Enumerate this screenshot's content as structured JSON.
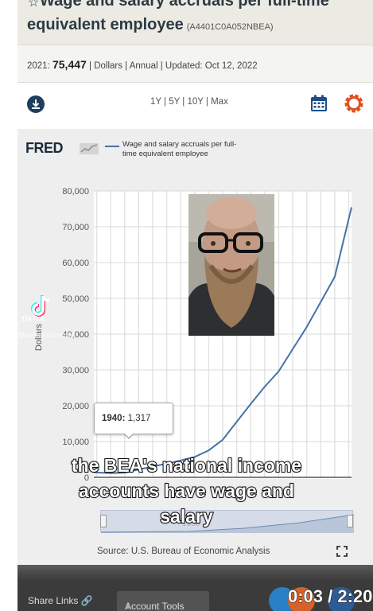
{
  "header": {
    "title_line1": "Wage and salary accruals per full-time",
    "title_line2": "equivalent employee",
    "series_id": "(A4401C0A052NBEA)"
  },
  "meta": {
    "year_label": "2021:",
    "value": "75,447",
    "details": "| Dollars | Annual | Updated: Oct 12, 2022"
  },
  "toolbar": {
    "range_links": "1Y | 5Y | 10Y | Max"
  },
  "chart": {
    "logo": "FRED",
    "legend": "Wage and salary accruals per full-time equivalent employee",
    "ylabel": "Dollars",
    "tooltip_year": "1940:",
    "tooltip_value": "1,317",
    "source": "Source: U.S. Bureau of Economic Analysis",
    "navigator_label": "1950"
  },
  "chart_data": {
    "type": "line",
    "ylabel": "Dollars",
    "ylim": [
      0,
      80000
    ],
    "yticks": [
      "0",
      "10,000",
      "20,000",
      "30,000",
      "40,000",
      "50,000",
      "60,000",
      "70,000",
      "80,000"
    ],
    "series": [
      {
        "name": "Wage and salary accruals per full-time equivalent employee",
        "x": [
          1929,
          1935,
          1940,
          1945,
          1950,
          1955,
          1960,
          1965,
          1970,
          1975,
          1980,
          1985,
          1990,
          1995,
          2000,
          2005,
          2010,
          2015,
          2021
        ],
        "values": [
          1405,
          1150,
          1317,
          2190,
          2990,
          3840,
          4710,
          5680,
          7540,
          10500,
          15500,
          20500,
          25300,
          29600,
          35800,
          42000,
          49000,
          56000,
          75447
        ]
      }
    ],
    "grid": true
  },
  "watermark": {
    "name": "TikTok",
    "handle": "@economicsauce"
  },
  "captions": {
    "line1": "the BEA's national income",
    "line2": "accounts have wage and",
    "line3": "salary"
  },
  "bottom": {
    "share_links": "Share Links",
    "account_tools": "Account Tools",
    "timestamp": "0:03 / 2:20"
  },
  "colors": {
    "series_line": "#4572a7",
    "title_text": "#2c3a45",
    "calendar_icon": "#1d4e89",
    "gear_icon": "#e0501e"
  }
}
